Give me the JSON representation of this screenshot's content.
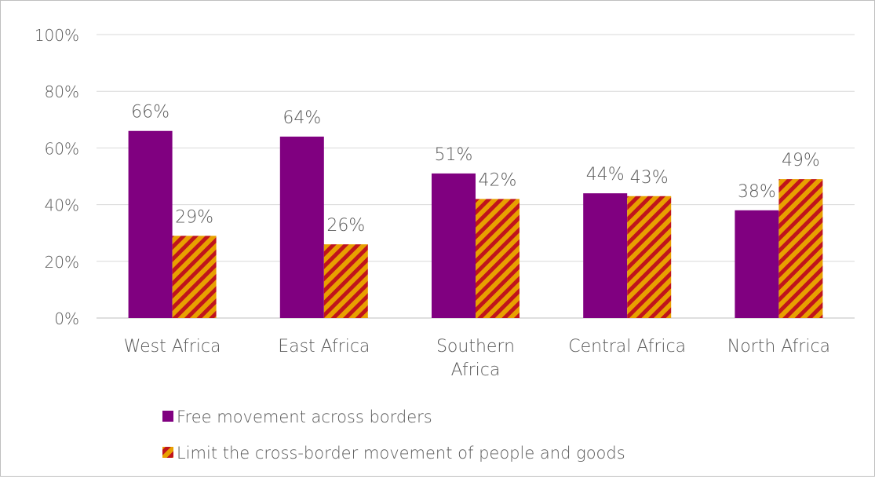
{
  "chart_data": {
    "type": "bar",
    "categories": [
      "West Africa",
      "East Africa",
      "Southern Africa",
      "Central Africa",
      "North Africa"
    ],
    "series": [
      {
        "name": "Free movement across borders",
        "values": [
          66,
          64,
          51,
          44,
          38
        ],
        "labels": [
          "66%",
          "64%",
          "51%",
          "44%",
          "38%"
        ],
        "color": "#800080",
        "pattern": "solid"
      },
      {
        "name": "Limit the cross-border movement of people and goods",
        "values": [
          29,
          26,
          42,
          43,
          49
        ],
        "labels": [
          "29%",
          "26%",
          "42%",
          "43%",
          "49%"
        ],
        "color": "#e8a000",
        "stripe_color": "#c0141c",
        "pattern": "diagonal-stripes"
      }
    ],
    "ylim": [
      0,
      100
    ],
    "yticks": [
      "0%",
      "20%",
      "40%",
      "60%",
      "80%",
      "100%"
    ],
    "grid": true,
    "legend": "bottom"
  }
}
